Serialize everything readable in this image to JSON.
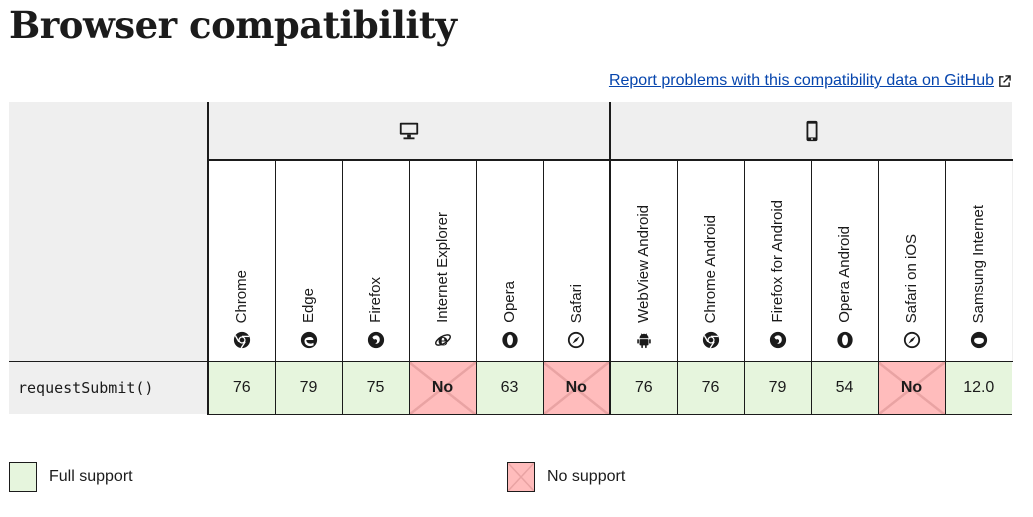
{
  "page": {
    "title": "Browser compatibility",
    "report_link": "Report problems with this compatibility data on GitHub"
  },
  "platforms": [
    {
      "name": "Desktop",
      "icon": "desktop-icon"
    },
    {
      "name": "Mobile",
      "icon": "mobile-icon"
    }
  ],
  "browsers": [
    {
      "name": "Chrome",
      "icon": "chrome-icon"
    },
    {
      "name": "Edge",
      "icon": "edge-icon"
    },
    {
      "name": "Firefox",
      "icon": "firefox-icon"
    },
    {
      "name": "Internet Explorer",
      "icon": "internet-explorer-icon"
    },
    {
      "name": "Opera",
      "icon": "opera-icon"
    },
    {
      "name": "Safari",
      "icon": "safari-icon"
    },
    {
      "name": "WebView Android",
      "icon": "android-icon"
    },
    {
      "name": "Chrome Android",
      "icon": "chrome-icon"
    },
    {
      "name": "Firefox for Android",
      "icon": "firefox-icon"
    },
    {
      "name": "Opera Android",
      "icon": "opera-icon"
    },
    {
      "name": "Safari on iOS",
      "icon": "safari-icon"
    },
    {
      "name": "Samsung Internet",
      "icon": "samsung-internet-icon"
    }
  ],
  "feature": {
    "name": "requestSubmit()",
    "support": [
      {
        "value": "76",
        "status": "full"
      },
      {
        "value": "79",
        "status": "full"
      },
      {
        "value": "75",
        "status": "full"
      },
      {
        "value": "No",
        "status": "no"
      },
      {
        "value": "63",
        "status": "full"
      },
      {
        "value": "No",
        "status": "no"
      },
      {
        "value": "76",
        "status": "full"
      },
      {
        "value": "76",
        "status": "full"
      },
      {
        "value": "79",
        "status": "full"
      },
      {
        "value": "54",
        "status": "full"
      },
      {
        "value": "No",
        "status": "no"
      },
      {
        "value": "12.0",
        "status": "full"
      }
    ]
  },
  "legend": {
    "full_support": "Full support",
    "no_support": "No support"
  },
  "colors": {
    "full_support_bg": "#e6f5dd",
    "no_support_bg": "#ffbcbc",
    "header_bg": "#efefef",
    "link": "#0645ad"
  }
}
